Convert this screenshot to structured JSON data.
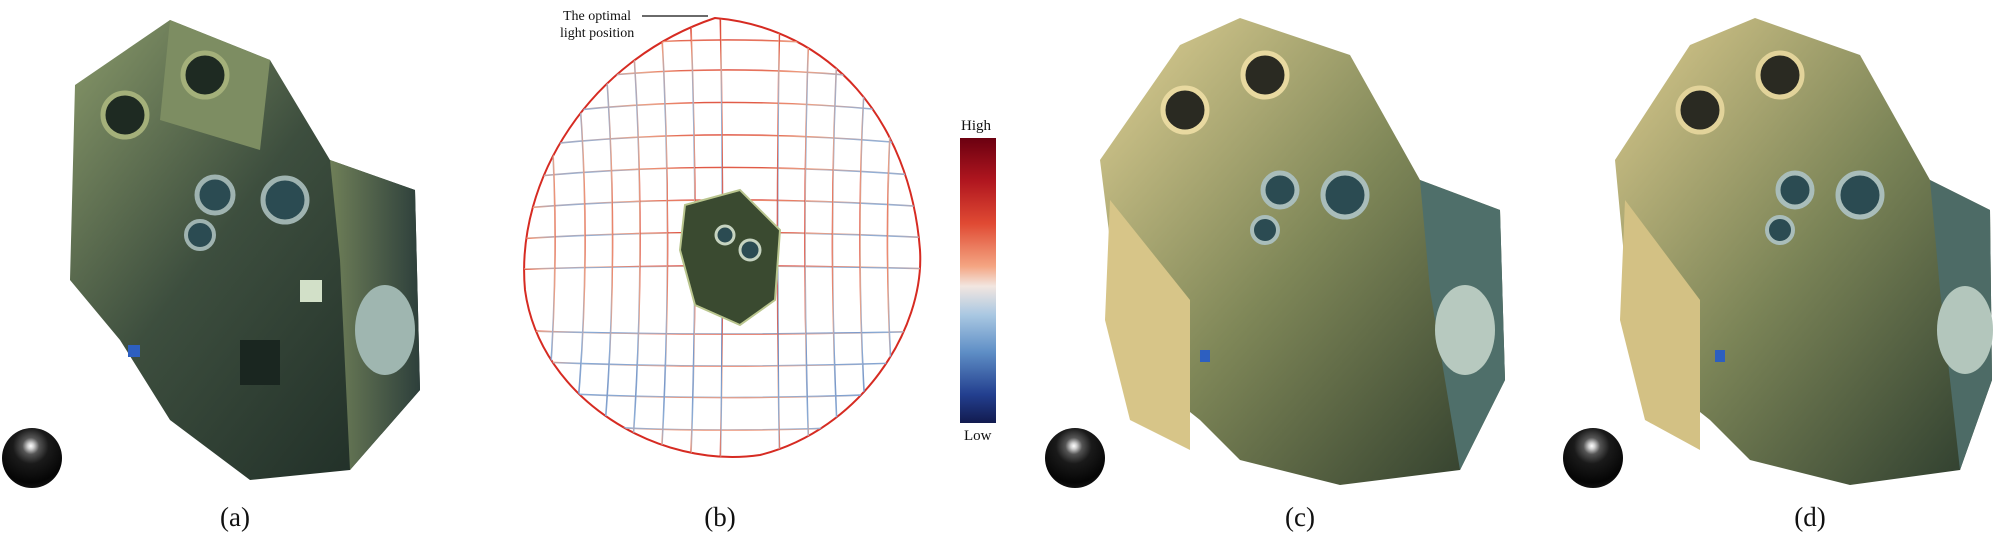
{
  "panels": [
    {
      "caption": "(a)",
      "sphere": true
    },
    {
      "caption": "(b)",
      "sphere": false
    },
    {
      "caption": "(c)",
      "sphere": true
    },
    {
      "caption": "(d)",
      "sphere": true
    }
  ],
  "annotation": {
    "line1": "The optimal",
    "line2": "light position"
  },
  "colorbar": {
    "high": "High",
    "low": "Low",
    "colors": [
      "#6b0010",
      "#e04a33",
      "#f2e6e0",
      "#5f8fc6",
      "#121b4f"
    ]
  },
  "colors": {
    "metal_dark": "#2c3a2a",
    "metal_mid": "#6f7a55",
    "metal_light": "#c9b87a",
    "teal": "#3f6f6f"
  }
}
